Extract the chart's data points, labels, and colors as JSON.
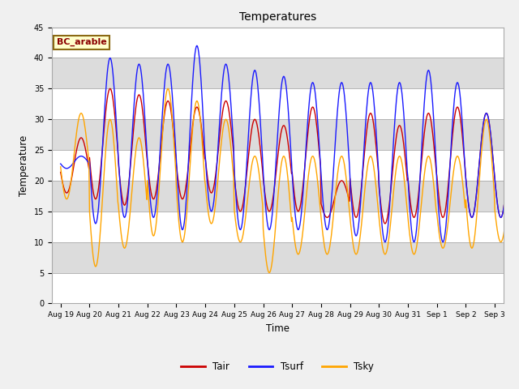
{
  "title": "Temperatures",
  "xlabel": "Time",
  "ylabel": "Temperature",
  "ylim": [
    0,
    45
  ],
  "bg_color": "#f0f0f0",
  "label_box": "BC_arable",
  "legend_labels": [
    "Tair",
    "Tsurf",
    "Tsky"
  ],
  "line_colors": [
    "#cc0000",
    "#1a1aff",
    "#ffa500"
  ],
  "n_days": 16,
  "pts_per_day": 48,
  "xtick_labels": [
    "Aug 19",
    "Aug 20",
    "Aug 21",
    "Aug 22",
    "Aug 23",
    "Aug 24",
    "Aug 25",
    "Aug 26",
    "Aug 27",
    "Aug 28",
    "Aug 29",
    "Aug 30",
    "Aug 31",
    "Sep 1",
    "Sep 2",
    "Sep 3"
  ],
  "tair_mins": [
    18,
    17,
    16,
    17,
    17,
    18,
    15,
    15,
    15,
    14,
    14,
    13,
    14,
    14,
    14,
    14
  ],
  "tair_maxs": [
    27,
    35,
    34,
    33,
    32,
    33,
    30,
    29,
    32,
    20,
    31,
    29,
    31,
    32,
    31,
    31
  ],
  "tsurf_mins": [
    22,
    13,
    14,
    14,
    12,
    15,
    12,
    12,
    12,
    12,
    11,
    10,
    10,
    10,
    14,
    14
  ],
  "tsurf_maxs": [
    24,
    40,
    39,
    39,
    42,
    39,
    38,
    37,
    36,
    36,
    36,
    36,
    38,
    36,
    31,
    31
  ],
  "tsky_mins": [
    17,
    6,
    9,
    11,
    10,
    13,
    10,
    5,
    8,
    8,
    8,
    8,
    8,
    9,
    9,
    10
  ],
  "tsky_maxs": [
    31,
    30,
    27,
    35,
    33,
    30,
    24,
    24,
    24,
    24,
    24,
    24,
    24,
    24,
    30,
    24
  ],
  "band_colors": [
    "#ffffff",
    "#dcdcdc"
  ],
  "yticks": [
    0,
    5,
    10,
    15,
    20,
    25,
    30,
    35,
    40,
    45
  ],
  "linewidth": 1.0
}
